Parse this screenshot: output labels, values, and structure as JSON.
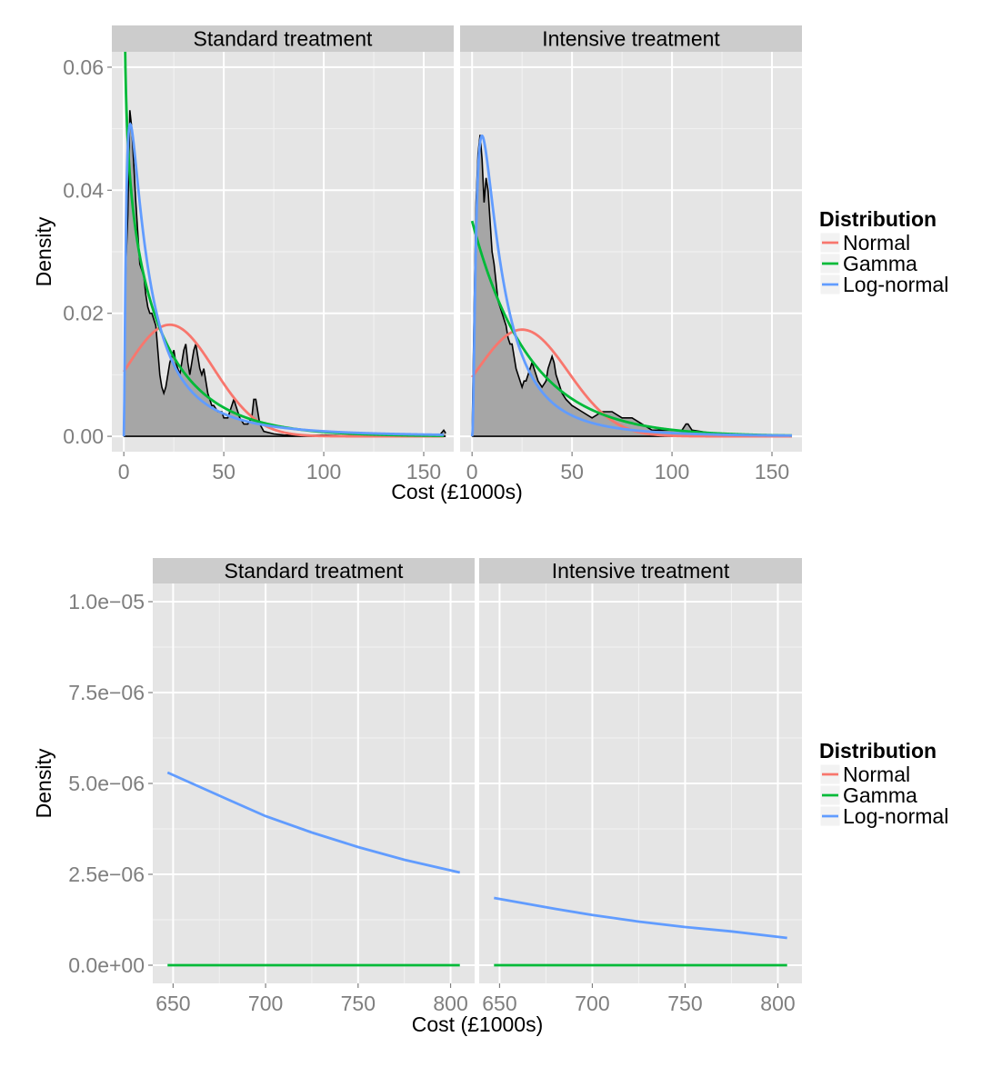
{
  "chart_data": [
    {
      "type": "line",
      "panels": [
        "Standard treatment",
        "Intensive treatment"
      ],
      "xlabel": "Cost (£1000s)",
      "ylabel": "Density",
      "xlim": [
        -6,
        165
      ],
      "ylim": [
        -0.0025,
        0.0625
      ],
      "xticks": [
        0,
        50,
        100,
        150
      ],
      "xtick_labels": [
        "0",
        "50",
        "100",
        "150"
      ],
      "yticks": [
        0,
        0.02,
        0.04,
        0.06
      ],
      "ytick_labels": [
        "0.00",
        "0.02",
        "0.04",
        "0.06"
      ],
      "legend": {
        "title": "Distribution",
        "position": "right",
        "entries": [
          "Normal",
          "Gamma",
          "Log-normal"
        ]
      },
      "grid": true,
      "colors": {
        "Normal": "#F8766D",
        "Gamma": "#00BA38",
        "Log-normal": "#619CFF",
        "density_fill": "#a6a6a6"
      },
      "empirical_density": {
        "Standard treatment": [
          [
            0,
            0
          ],
          [
            1,
            0.028
          ],
          [
            2,
            0.036
          ],
          [
            3,
            0.053
          ],
          [
            4,
            0.05
          ],
          [
            5,
            0.044
          ],
          [
            6,
            0.038
          ],
          [
            7,
            0.033
          ],
          [
            8,
            0.028
          ],
          [
            9,
            0.027
          ],
          [
            10,
            0.026
          ],
          [
            11,
            0.023
          ],
          [
            12,
            0.021
          ],
          [
            13,
            0.02
          ],
          [
            14,
            0.02
          ],
          [
            15,
            0.019
          ],
          [
            16,
            0.018
          ],
          [
            17,
            0.014
          ],
          [
            18,
            0.01
          ],
          [
            19,
            0.008
          ],
          [
            20,
            0.007
          ],
          [
            21,
            0.008
          ],
          [
            22,
            0.01
          ],
          [
            23,
            0.012
          ],
          [
            24,
            0.013
          ],
          [
            25,
            0.014
          ],
          [
            26,
            0.012
          ],
          [
            27,
            0.011
          ],
          [
            28,
            0.01
          ],
          [
            29,
            0.012
          ],
          [
            30,
            0.014
          ],
          [
            31,
            0.015
          ],
          [
            32,
            0.012
          ],
          [
            33,
            0.01
          ],
          [
            34,
            0.012
          ],
          [
            35,
            0.014
          ],
          [
            36,
            0.015
          ],
          [
            37,
            0.013
          ],
          [
            38,
            0.011
          ],
          [
            39,
            0.01
          ],
          [
            40,
            0.011
          ],
          [
            41,
            0.009
          ],
          [
            42,
            0.007
          ],
          [
            43,
            0.006
          ],
          [
            44,
            0.005
          ],
          [
            45,
            0.005
          ],
          [
            47,
            0.004
          ],
          [
            49,
            0.004
          ],
          [
            50,
            0.003
          ],
          [
            52,
            0.003
          ],
          [
            54,
            0.005
          ],
          [
            55,
            0.006
          ],
          [
            56,
            0.005
          ],
          [
            58,
            0.003
          ],
          [
            60,
            0.002
          ],
          [
            62,
            0.002
          ],
          [
            64,
            0.003
          ],
          [
            65,
            0.006
          ],
          [
            66,
            0.006
          ],
          [
            67,
            0.004
          ],
          [
            68,
            0.002
          ],
          [
            70,
            0.0008
          ],
          [
            75,
            0.0004
          ],
          [
            80,
            0.0002
          ],
          [
            90,
            0.0001
          ],
          [
            100,
            0.0002
          ],
          [
            110,
            0.0001
          ],
          [
            120,
            0.0001
          ],
          [
            130,
            0.0001
          ],
          [
            140,
            0.0001
          ],
          [
            150,
            0.0001
          ],
          [
            158,
            0.0002
          ],
          [
            160,
            0.001
          ],
          [
            161,
            0.0005
          ]
        ],
        "Intensive treatment": [
          [
            0,
            0
          ],
          [
            1,
            0.02
          ],
          [
            2,
            0.038
          ],
          [
            3,
            0.046
          ],
          [
            4,
            0.049
          ],
          [
            5,
            0.045
          ],
          [
            6,
            0.038
          ],
          [
            7,
            0.042
          ],
          [
            8,
            0.04
          ],
          [
            9,
            0.035
          ],
          [
            10,
            0.03
          ],
          [
            11,
            0.028
          ],
          [
            12,
            0.025
          ],
          [
            13,
            0.022
          ],
          [
            14,
            0.021
          ],
          [
            15,
            0.02
          ],
          [
            16,
            0.019
          ],
          [
            17,
            0.018
          ],
          [
            18,
            0.016
          ],
          [
            19,
            0.015
          ],
          [
            20,
            0.015
          ],
          [
            21,
            0.013
          ],
          [
            22,
            0.011
          ],
          [
            23,
            0.01
          ],
          [
            24,
            0.009
          ],
          [
            25,
            0.008
          ],
          [
            26,
            0.009
          ],
          [
            27,
            0.009
          ],
          [
            28,
            0.01
          ],
          [
            29,
            0.011
          ],
          [
            30,
            0.012
          ],
          [
            31,
            0.011
          ],
          [
            32,
            0.01
          ],
          [
            33,
            0.009
          ],
          [
            35,
            0.008
          ],
          [
            37,
            0.009
          ],
          [
            38,
            0.011
          ],
          [
            39,
            0.012
          ],
          [
            40,
            0.013
          ],
          [
            41,
            0.012
          ],
          [
            42,
            0.01
          ],
          [
            43,
            0.009
          ],
          [
            44,
            0.008
          ],
          [
            45,
            0.007
          ],
          [
            47,
            0.006
          ],
          [
            50,
            0.005
          ],
          [
            55,
            0.004
          ],
          [
            60,
            0.003
          ],
          [
            65,
            0.004
          ],
          [
            70,
            0.004
          ],
          [
            75,
            0.003
          ],
          [
            80,
            0.003
          ],
          [
            85,
            0.002
          ],
          [
            90,
            0.001
          ],
          [
            95,
            0.001
          ],
          [
            100,
            0.001
          ],
          [
            105,
            0.001
          ],
          [
            107,
            0.002
          ],
          [
            108,
            0.002
          ],
          [
            110,
            0.001
          ],
          [
            120,
            0.0005
          ],
          [
            130,
            0.0003
          ],
          [
            140,
            0.0003
          ],
          [
            150,
            0.0002
          ],
          [
            160,
            0.0001
          ]
        ]
      },
      "fitted_params": {
        "Standard treatment": {
          "normal": {
            "mean": 23,
            "sd": 22
          },
          "gamma": {
            "shape": 0.8,
            "rate": 0.035
          },
          "lognormal": {
            "meanlog": 2.6,
            "sdlog": 1.2
          }
        },
        "Intensive treatment": {
          "normal": {
            "mean": 25,
            "sd": 23
          },
          "gamma": {
            "shape": 1.0,
            "rate": 0.035
          },
          "lognormal": {
            "meanlog": 2.6,
            "sdlog": 1.0
          }
        }
      }
    },
    {
      "type": "line",
      "panels": [
        "Standard treatment",
        "Intensive treatment"
      ],
      "xlabel": "Cost (£1000s)",
      "ylabel": "Density",
      "xlim": [
        639,
        813
      ],
      "ylim": [
        -5e-07,
        1.05e-05
      ],
      "xticks": [
        650,
        700,
        750,
        800
      ],
      "xtick_labels": [
        "650",
        "700",
        "750",
        "800"
      ],
      "yticks": [
        0,
        2.5e-06,
        5e-06,
        7.5e-06,
        1e-05
      ],
      "ytick_labels": [
        "0.0e+00",
        "2.5e−06",
        "5.0e−06",
        "7.5e−06",
        "1.0e−05"
      ],
      "legend": {
        "title": "Distribution",
        "position": "right",
        "entries": [
          "Normal",
          "Gamma",
          "Log-normal"
        ]
      },
      "grid": true,
      "colors": {
        "Normal": "#F8766D",
        "Gamma": "#00BA38",
        "Log-normal": "#619CFF"
      },
      "series": {
        "Standard treatment": [
          {
            "name": "Gamma",
            "x": [
              647,
              805
            ],
            "y": [
              0,
              0
            ]
          },
          {
            "name": "Log-normal",
            "x": [
              647,
              680,
              700,
              725,
              750,
              775,
              805
            ],
            "y": [
              5.3e-06,
              4.55e-06,
              4.1e-06,
              3.65e-06,
              3.25e-06,
              2.9e-06,
              2.55e-06
            ]
          }
        ],
        "Intensive treatment": [
          {
            "name": "Gamma",
            "x": [
              647,
              805
            ],
            "y": [
              0,
              0
            ]
          },
          {
            "name": "Log-normal",
            "x": [
              647,
              680,
              700,
              725,
              750,
              775,
              805
            ],
            "y": [
              1.85e-06,
              1.55e-06,
              1.38e-06,
              1.2e-06,
              1.05e-06,
              9.3e-07,
              7.5e-07
            ]
          }
        ]
      }
    }
  ]
}
